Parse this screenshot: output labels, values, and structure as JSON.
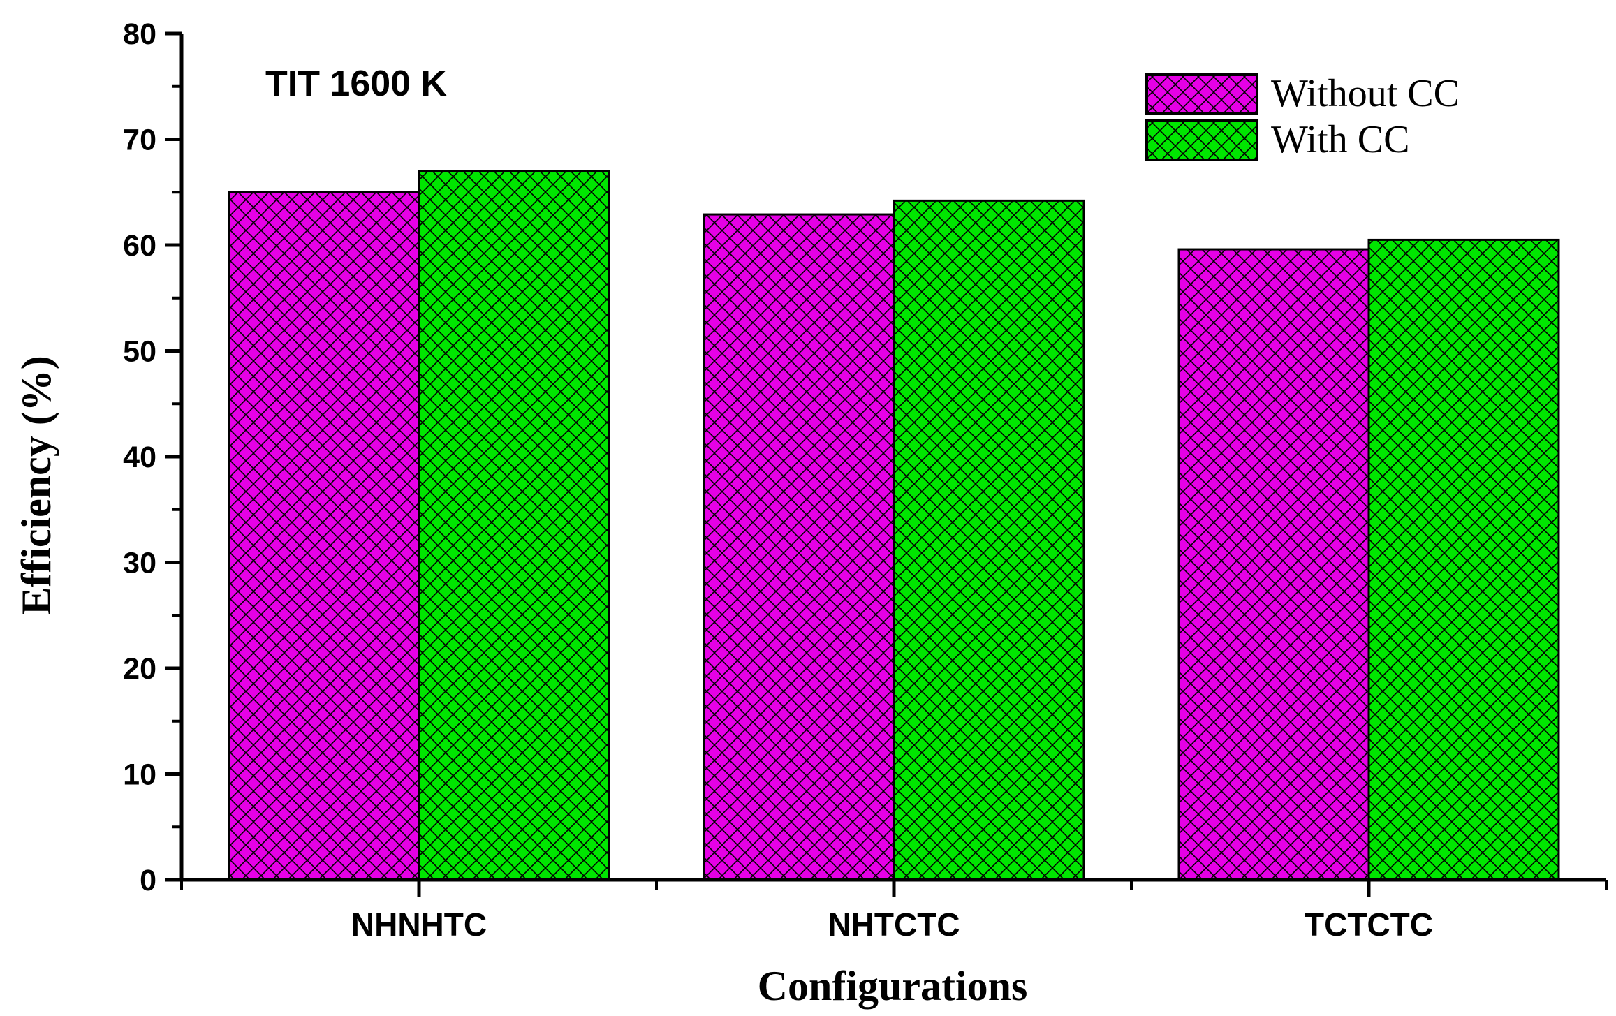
{
  "chart_data": {
    "type": "bar",
    "annotation": "TIT 1600 K",
    "xlabel": "Configurations",
    "ylabel": "Efficiency (%)",
    "ylim": [
      0,
      80
    ],
    "yticks": [
      "0",
      "10",
      "20",
      "30",
      "40",
      "50",
      "60",
      "70",
      "80"
    ],
    "categories": [
      "NHNHTC",
      "NHTCTC",
      "TCTCTC"
    ],
    "series": [
      {
        "name": "Without CC",
        "color": "#e600e6",
        "values": [
          65.0,
          62.9,
          59.6
        ]
      },
      {
        "name": "With CC",
        "color": "#00e600",
        "values": [
          67.0,
          64.2,
          60.5
        ]
      }
    ],
    "legend_position": "top-right",
    "grid": false,
    "pattern": "crosshatch"
  }
}
